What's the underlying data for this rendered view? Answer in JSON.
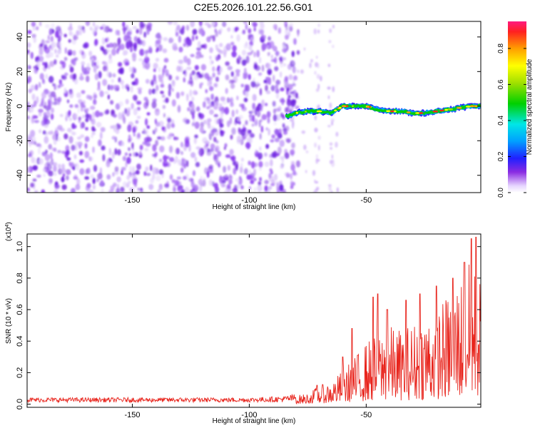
{
  "title": "C2E5.2026.101.22.56.G01",
  "chart_data": [
    {
      "type": "heatmap",
      "name": "spectrogram",
      "xlabel": "Height of straight line (km)",
      "ylabel": "Frequency (Hz)",
      "xlim": [
        -195,
        -1
      ],
      "ylim": [
        -50,
        49
      ],
      "xticks": [
        -150,
        -100,
        -50
      ],
      "yticks": [
        -40,
        -20,
        0,
        20,
        40
      ],
      "noise_region_x": [
        -195,
        -82
      ],
      "sparse_region_x": [
        -82,
        -62
      ],
      "signal_track": {
        "x": [
          -84,
          -80,
          -75,
          -70,
          -65,
          -60,
          -55,
          -50,
          -45,
          -40,
          -35,
          -30,
          -25,
          -20,
          -15,
          -10,
          -5,
          -1
        ],
        "y": [
          -6,
          -4,
          -3,
          -3,
          -4,
          0,
          0,
          0,
          -2,
          -3,
          -3,
          -4,
          -4,
          -3,
          -2,
          -1,
          0,
          0
        ]
      },
      "colorbar": {
        "label": "Normalized spectral amplitude",
        "range": [
          0.0,
          0.95
        ],
        "ticks": [
          0.0,
          0.2,
          0.4,
          0.6,
          0.8
        ],
        "tick_labels": [
          "0.0",
          "0.2",
          "0.4",
          "0.6",
          "0.8"
        ]
      }
    },
    {
      "type": "line",
      "name": "snr",
      "xlabel": "Height of straight line (km)",
      "ylabel": "SNR (10 * v/v)",
      "multiplier": "(x10",
      "multiplier_exp": "4",
      "multiplier_close": ")",
      "xlim": [
        -195,
        -1
      ],
      "ylim": [
        -0.02,
        1.08
      ],
      "xticks": [
        -150,
        -100,
        -50
      ],
      "yticks": [
        0.0,
        0.2,
        0.4,
        0.6,
        0.8,
        1.0
      ],
      "ytick_labels": [
        "0.0",
        "0.2",
        "0.4",
        "0.6",
        "0.8",
        "1.0"
      ],
      "color": "#e8241c",
      "envelope": {
        "x": [
          -195,
          -100,
          -85,
          -75,
          -70,
          -65,
          -60,
          -55,
          -50,
          -45,
          -40,
          -35,
          -30,
          -25,
          -20,
          -15,
          -10,
          -5,
          -1
        ],
        "y": [
          0.03,
          0.03,
          0.04,
          0.07,
          0.12,
          0.14,
          0.22,
          0.3,
          0.4,
          0.45,
          0.5,
          0.48,
          0.52,
          0.58,
          0.62,
          0.7,
          0.82,
          0.92,
          0.8
        ]
      },
      "peaks": {
        "x": [
          -71,
          -60,
          -56,
          -47,
          -45,
          -41,
          -33,
          -27,
          -20,
          -13,
          -8,
          -5,
          -3
        ],
        "y": [
          0.12,
          0.3,
          0.48,
          0.68,
          0.7,
          0.6,
          0.66,
          0.7,
          0.75,
          0.8,
          0.9,
          1.05,
          1.06
        ]
      }
    }
  ],
  "colors": {
    "signal": "#e8241c",
    "noise": "#7a2fe0"
  }
}
